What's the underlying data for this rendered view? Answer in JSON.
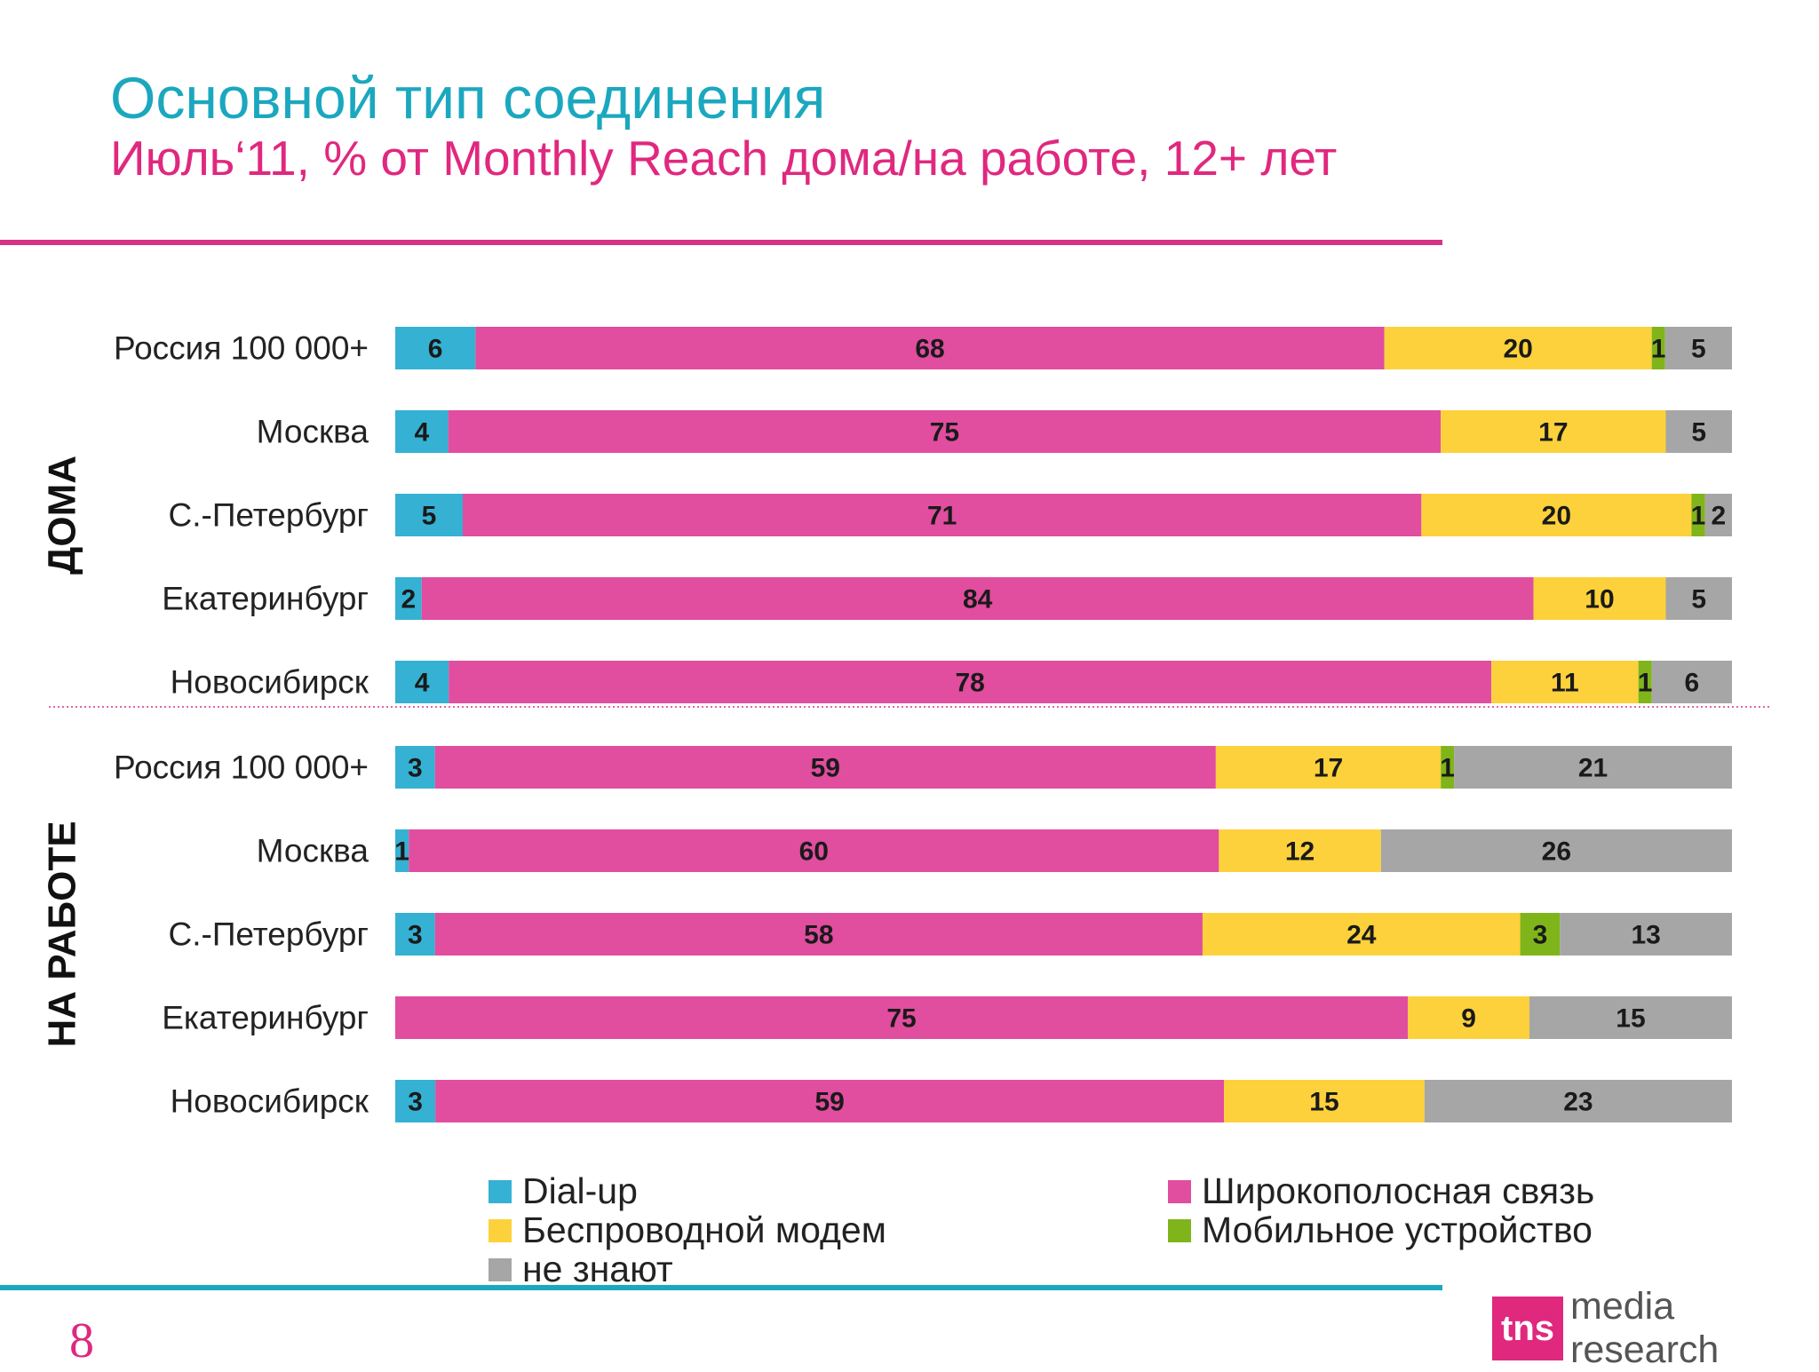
{
  "header": {
    "title": "Основной тип соединения",
    "subtitle": "Июль‘11, % от Monthly Reach дома/на работе, 12+ лет"
  },
  "chart_data": {
    "type": "bar",
    "orientation": "horizontal",
    "stacked": true,
    "series": [
      {
        "name": "Dial-up",
        "color": "#35b1d3"
      },
      {
        "name": "Широкополосная связь",
        "color": "#e14d9f"
      },
      {
        "name": "Беспроводной модем",
        "color": "#fdd13b"
      },
      {
        "name": "Мобильное устройство",
        "color": "#7fb51a"
      },
      {
        "name": "не знают",
        "color": "#a6a6a6"
      }
    ],
    "groups": [
      {
        "label": "ДОМА",
        "rows": [
          {
            "category": "Россия 100 000+",
            "values": [
              6,
              68,
              20,
              1,
              5
            ]
          },
          {
            "category": "Москва",
            "values": [
              4,
              75,
              17,
              0,
              5
            ]
          },
          {
            "category": "С.-Петербург",
            "values": [
              5,
              71,
              20,
              1,
              2
            ]
          },
          {
            "category": "Екатеринбург",
            "values": [
              2,
              84,
              10,
              0,
              5
            ]
          },
          {
            "category": "Новосибирск",
            "values": [
              4,
              78,
              11,
              1,
              6
            ]
          }
        ]
      },
      {
        "label": "НА РАБОТЕ",
        "rows": [
          {
            "category": "Россия 100 000+",
            "values": [
              3,
              59,
              17,
              1,
              21
            ]
          },
          {
            "category": "Москва",
            "values": [
              1,
              60,
              12,
              0,
              26
            ]
          },
          {
            "category": "С.-Петербург",
            "values": [
              3,
              58,
              24,
              3,
              13
            ]
          },
          {
            "category": "Екатеринбург",
            "values": [
              0,
              75,
              9,
              0,
              15
            ]
          },
          {
            "category": "Новосибирск",
            "values": [
              3,
              59,
              15,
              0,
              23
            ]
          }
        ]
      }
    ],
    "legend": "bottom"
  },
  "footer": {
    "page_number": "8",
    "brand_badge": "tns",
    "brand_name": "media research"
  }
}
